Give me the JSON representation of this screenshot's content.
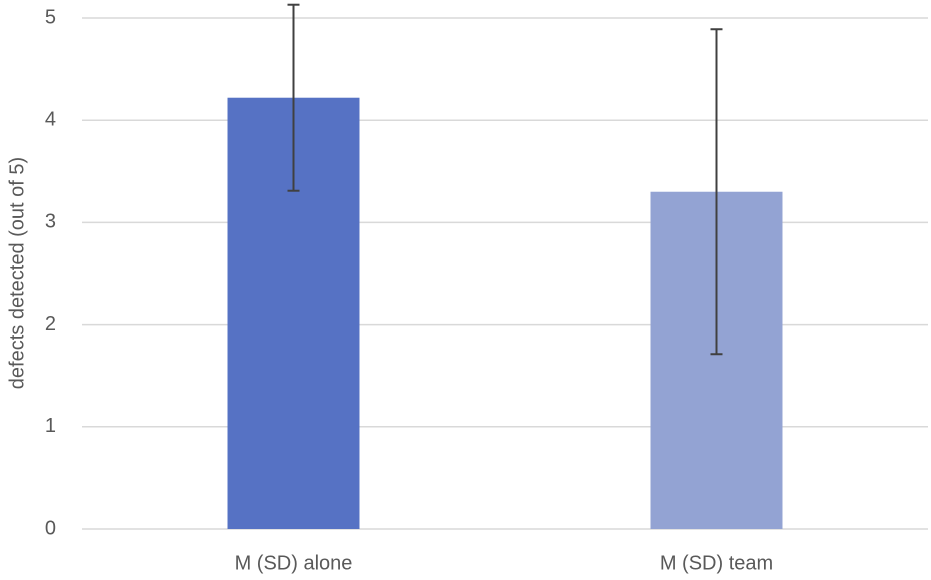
{
  "chart_data": {
    "type": "bar",
    "y_label": "defects  detected (out of 5)",
    "categories": [
      "M (SD) alone",
      "M (SD) team"
    ],
    "values": [
      4.22,
      3.3
    ],
    "errors": [
      0.91,
      1.59
    ],
    "colors": [
      "#5672c4",
      "#93a3d3"
    ],
    "error_color": "#404040",
    "ylim": [
      0,
      5
    ],
    "yticks": [
      0,
      1,
      2,
      3,
      4,
      5
    ],
    "grid": true
  }
}
